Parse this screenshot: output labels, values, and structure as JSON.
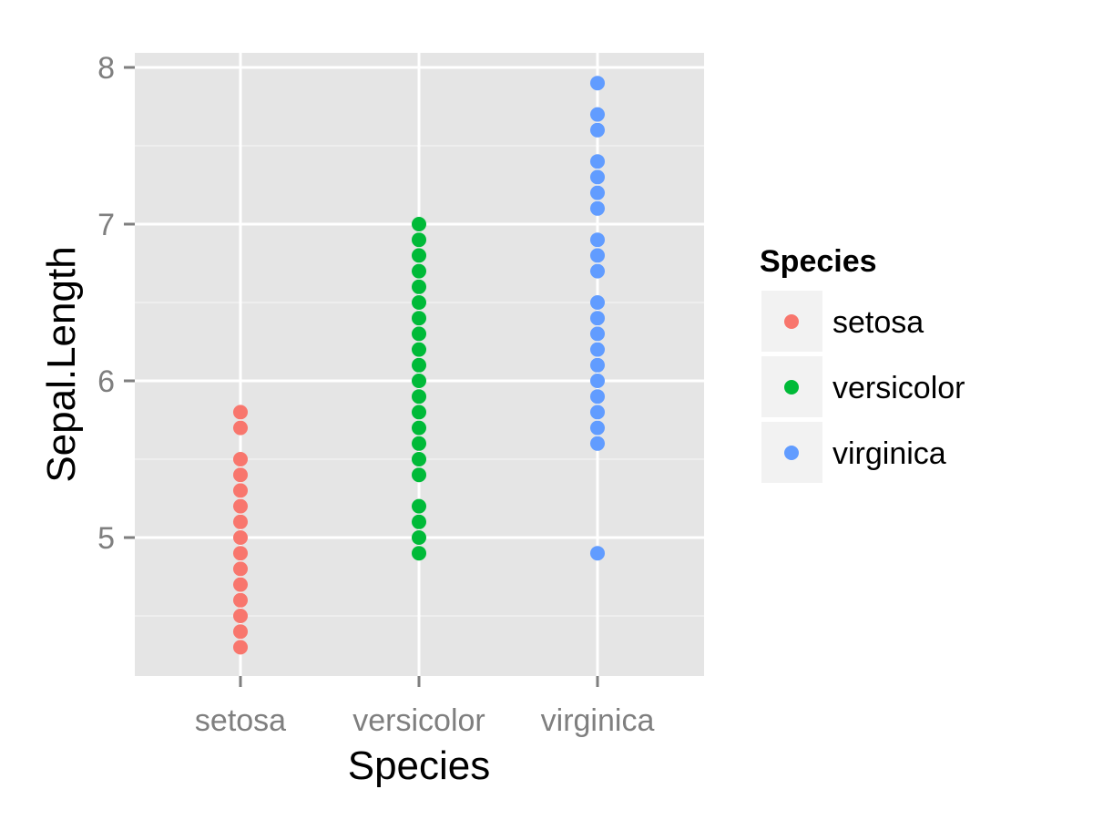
{
  "chart_data": {
    "type": "scatter",
    "xlabel": "Species",
    "ylabel": "Sepal.Length",
    "categories": [
      "setosa",
      "versicolor",
      "virginica"
    ],
    "y_ticks": [
      5,
      6,
      7,
      8
    ],
    "ylim": [
      4.2,
      8.0
    ],
    "grid": true,
    "legend": {
      "title": "Species",
      "position": "right"
    },
    "series": [
      {
        "name": "setosa",
        "color": "#F8766D",
        "x": "setosa",
        "values": [
          4.3,
          4.4,
          4.5,
          4.6,
          4.7,
          4.8,
          4.9,
          5.0,
          5.1,
          5.2,
          5.3,
          5.4,
          5.5,
          5.7,
          5.8
        ]
      },
      {
        "name": "versicolor",
        "color": "#00BA38",
        "x": "versicolor",
        "values": [
          4.9,
          5.0,
          5.1,
          5.2,
          5.4,
          5.5,
          5.6,
          5.7,
          5.8,
          5.9,
          6.0,
          6.1,
          6.2,
          6.3,
          6.4,
          6.5,
          6.6,
          6.7,
          6.8,
          6.9,
          7.0
        ]
      },
      {
        "name": "virginica",
        "color": "#619CFF",
        "x": "virginica",
        "values": [
          4.9,
          5.6,
          5.7,
          5.8,
          5.9,
          6.0,
          6.1,
          6.2,
          6.3,
          6.4,
          6.5,
          6.7,
          6.8,
          6.9,
          7.1,
          7.2,
          7.3,
          7.4,
          7.6,
          7.7,
          7.9
        ]
      }
    ]
  }
}
